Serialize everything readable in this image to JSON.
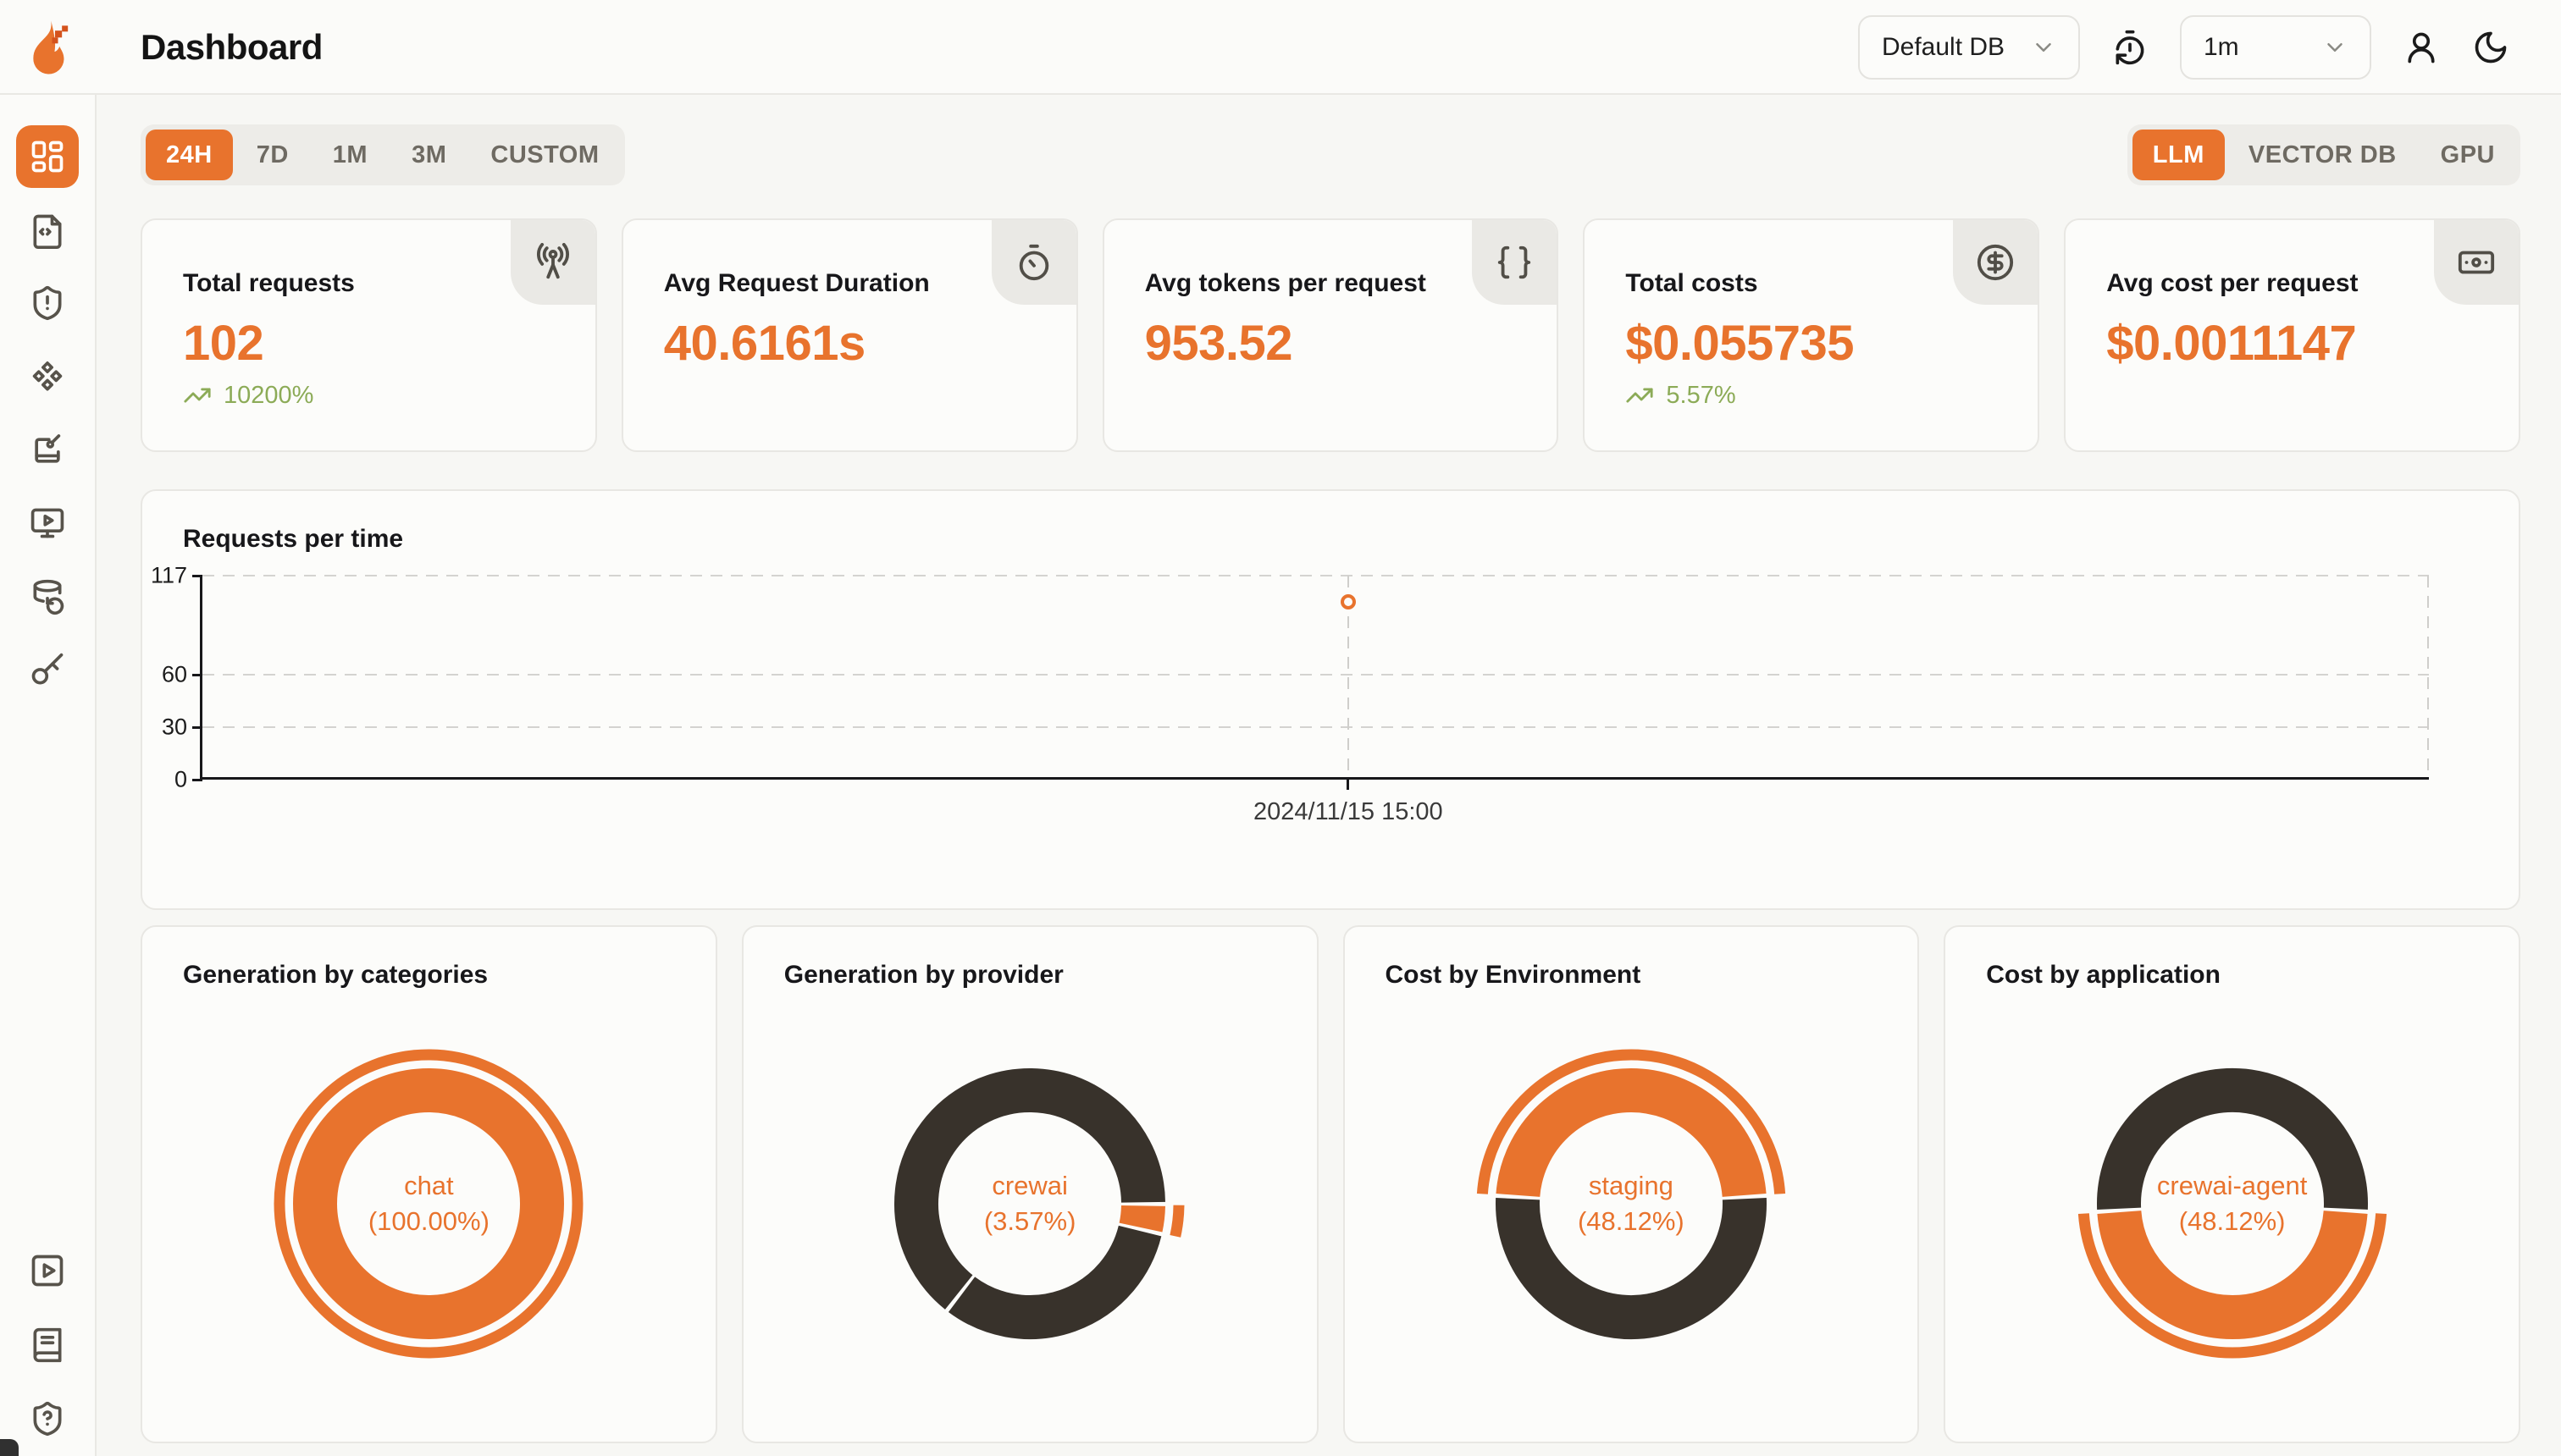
{
  "header": {
    "title": "Dashboard",
    "database_selector": {
      "value": "Default DB"
    },
    "refresh_interval_selector": {
      "value": "1m"
    }
  },
  "sidebar": {
    "top_items": [
      "dashboard",
      "requests",
      "exceptions",
      "prompt-hub",
      "playground",
      "openground",
      "databases",
      "api-keys"
    ],
    "active_item": "dashboard",
    "bottom_items": [
      "getting-started",
      "documentation",
      "support"
    ]
  },
  "filters": {
    "time_ranges": [
      "24H",
      "7D",
      "1M",
      "3M",
      "CUSTOM"
    ],
    "active_time_range": "24H",
    "sources": [
      "LLM",
      "VECTOR DB",
      "GPU"
    ],
    "active_source": "LLM"
  },
  "stat_cards": [
    {
      "title": "Total requests",
      "value": "102",
      "trend": "10200%",
      "icon": "radio-tower"
    },
    {
      "title": "Avg Request Duration",
      "value": "40.6161s",
      "trend": "",
      "icon": "timer"
    },
    {
      "title": "Avg tokens per request",
      "value": "953.52",
      "trend": "",
      "icon": "braces"
    },
    {
      "title": "Total costs",
      "value": "$0.055735",
      "trend": "5.57%",
      "icon": "circle-dollar-sign"
    },
    {
      "title": "Avg cost per request",
      "value": "$0.0011147",
      "trend": "",
      "icon": "banknote"
    }
  ],
  "colors": {
    "orange": "#E8732D",
    "dark": "#38322B",
    "green": "#8CAB57",
    "page_bg": "#F7F7F4",
    "card_bg": "#FCFCFA"
  },
  "chart_data": [
    {
      "id": "requests-per-time",
      "type": "scatter",
      "title": "Requests per time",
      "x": [
        "2024/11/15 15:00"
      ],
      "values": [
        102
      ],
      "ylim": [
        0,
        117
      ],
      "yticks": [
        117,
        60,
        30,
        0
      ],
      "grid": "dashed horizontal + right border",
      "legend": "none",
      "point_x_frac": 0.514
    },
    {
      "id": "categories",
      "type": "pie",
      "title": "Generation by categories",
      "center_label": {
        "line1": "chat",
        "line2": "(100.00%)"
      },
      "slices": [
        {
          "label": "chat",
          "pct": 100.0,
          "color": "orange"
        }
      ],
      "segments": [
        {
          "color": "orange",
          "from_pct": 0,
          "to_pct": 100
        }
      ],
      "emphasis": {
        "color": "orange",
        "from_pct": 0,
        "to_pct": 100
      }
    },
    {
      "id": "provider",
      "type": "pie",
      "title": "Generation by provider",
      "center_label": {
        "line1": "crewai",
        "line2": "(3.57%)"
      },
      "slices": [
        {
          "label": "crewai",
          "pct": 3.57,
          "color": "orange"
        }
      ],
      "segments": [
        {
          "color": "dark",
          "from_pct": 28.61,
          "to_pct": 60.5
        },
        {
          "color": "dark",
          "from_pct": 60.5,
          "to_pct": 125.04
        },
        {
          "color": "orange",
          "from_pct": 25.04,
          "to_pct": 28.61
        }
      ],
      "emphasis": {
        "color": "orange",
        "from_pct": 25.04,
        "to_pct": 28.61
      }
    },
    {
      "id": "environment",
      "type": "pie",
      "title": "Cost by Environment",
      "center_label": {
        "line1": "staging",
        "line2": "(48.12%)"
      },
      "slices": [
        {
          "label": "staging",
          "pct": 48.12,
          "color": "orange"
        }
      ],
      "segments": [
        {
          "color": "orange",
          "from_pct": -24.06,
          "to_pct": 24.06
        },
        {
          "color": "dark",
          "from_pct": 24.06,
          "to_pct": 75.94
        }
      ],
      "emphasis": {
        "color": "orange",
        "from_pct": -24.06,
        "to_pct": 24.06
      }
    },
    {
      "id": "application",
      "type": "pie",
      "title": "Cost by application",
      "center_label": {
        "line1": "crewai-agent",
        "line2": "(48.12%)"
      },
      "slices": [
        {
          "label": "crewai-agent",
          "pct": 48.12,
          "color": "orange"
        }
      ],
      "segments": [
        {
          "color": "orange",
          "from_pct": 25.94,
          "to_pct": 74.06
        },
        {
          "color": "dark",
          "from_pct": 74.06,
          "to_pct": 125.94
        }
      ],
      "emphasis": {
        "color": "orange",
        "from_pct": 25.94,
        "to_pct": 74.06
      }
    }
  ]
}
